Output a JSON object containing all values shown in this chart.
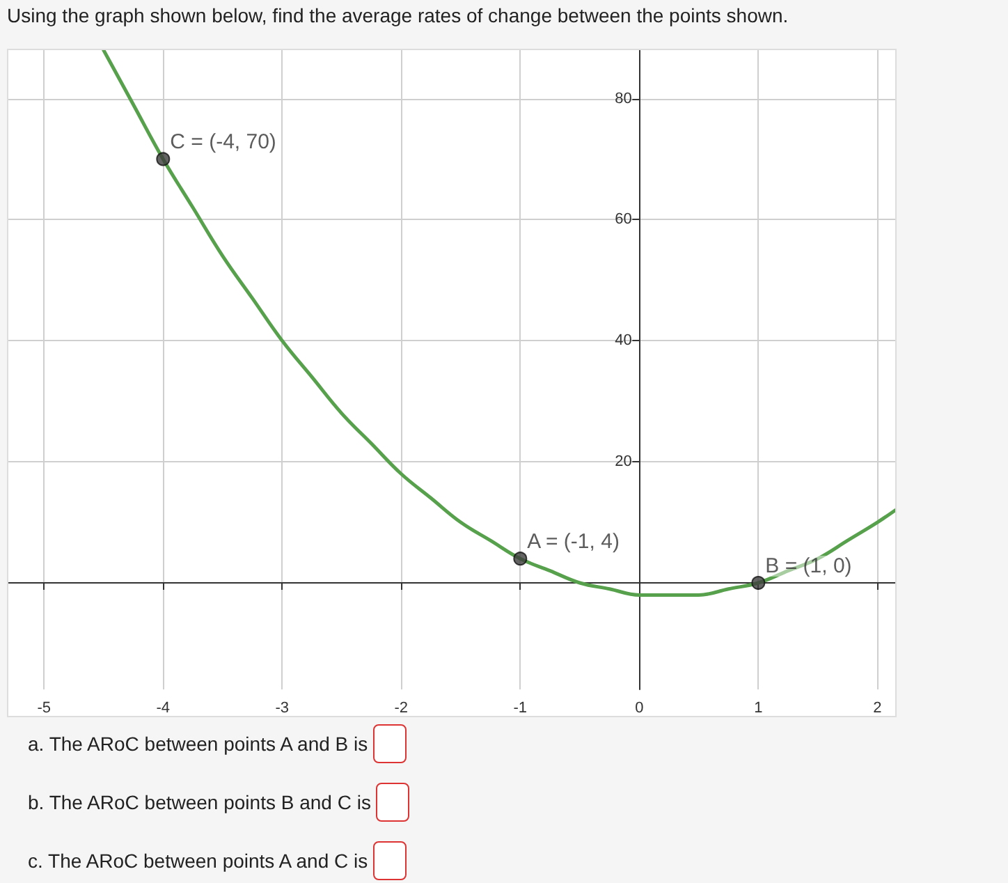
{
  "chart_data": {
    "type": "line",
    "title": "Using the graph shown below, find the average rates of change between the points shown.",
    "xlim": [
      -5.3,
      2.15
    ],
    "xticks": [
      -5,
      -4,
      -3,
      -2,
      -1,
      0,
      1,
      2
    ],
    "ylim": [
      -17.6,
      88
    ],
    "yticks": [
      20,
      40,
      60,
      80
    ],
    "grid": true,
    "series": [
      {
        "color": "#57a04c",
        "marker": "none",
        "x": [
          -4.5,
          -4.25,
          -4,
          -3.75,
          -3.5,
          -3.25,
          -3,
          -2.75,
          -2.5,
          -2.25,
          -2,
          -1.75,
          -1.5,
          -1.25,
          -1,
          -0.75,
          -0.5,
          -0.25,
          0,
          0.25,
          0.5,
          0.75,
          1,
          1.25,
          1.5,
          1.75,
          2,
          2.15
        ],
        "values": [
          88,
          79,
          70,
          62,
          54,
          47,
          40,
          34,
          28,
          23,
          18,
          14,
          10,
          7,
          4,
          2,
          0,
          -1,
          -2,
          -2,
          -2,
          -1,
          0,
          2,
          4,
          7,
          10,
          12
        ]
      },
      {
        "type": "scatter",
        "color": "#3d3d3d",
        "marker": "circle",
        "x": [
          -4,
          -1,
          1
        ],
        "values": [
          70,
          4,
          0
        ]
      }
    ],
    "annotations": [
      {
        "text": "C = (-4, 70)",
        "x": -4,
        "y": 70
      },
      {
        "text": "A = (-1, 4)",
        "x": -1,
        "y": 4
      },
      {
        "text": "B = (1, 0)",
        "x": 1,
        "y": 0
      },
      "a. The ARoC between points A and B is",
      "b. The ARoC between points B and C is",
      "c. The ARoC between points A and C is"
    ]
  }
}
